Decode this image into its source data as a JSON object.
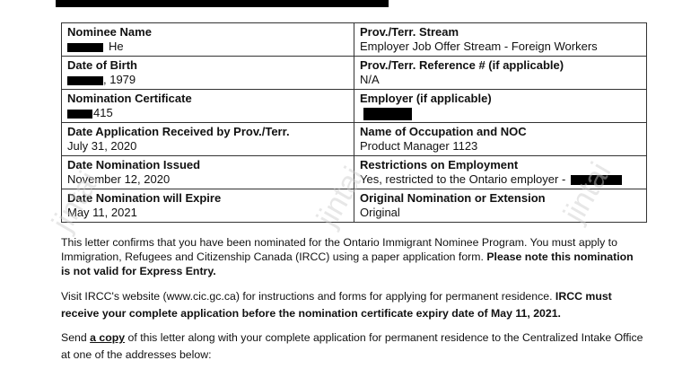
{
  "watermark": "jintai",
  "table": {
    "rows": [
      {
        "left": {
          "label": "Nominee Name",
          "value": "He",
          "redacted": true
        },
        "right": {
          "label": "Prov./Terr. Stream",
          "value": "Employer Job Offer Stream - Foreign Workers"
        }
      },
      {
        "left": {
          "label": "Date of Birth",
          "value": ", 1979",
          "redacted": true
        },
        "right": {
          "label": "Prov./Terr. Reference # (if applicable)",
          "value": "N/A"
        }
      },
      {
        "left": {
          "label": "Nomination Certificate",
          "value": "415",
          "redacted": true
        },
        "right": {
          "label": "Employer (if applicable)",
          "value": "",
          "redacted": true
        }
      },
      {
        "left": {
          "label": "Date Application Received by Prov./Terr.",
          "value": "July 31, 2020"
        },
        "right": {
          "label": "Name of Occupation and NOC",
          "value": "Product Manager 1123"
        }
      },
      {
        "left": {
          "label": "Date Nomination Issued",
          "value": "November 12, 2020"
        },
        "right": {
          "label": "Restrictions on Employment",
          "value": "Yes, restricted to the Ontario employer -",
          "redacted": true
        }
      },
      {
        "left": {
          "label": "Date Nomination will Expire",
          "value": "May 11, 2021"
        },
        "right": {
          "label": "Original Nomination or Extension",
          "value": "Original"
        }
      }
    ]
  },
  "paragraphs": {
    "p1": {
      "text": "This letter confirms that you have been nominated for the Ontario Immigrant Nominee Program. You must apply to Immigration, Refugees and Citizenship Canada (IRCC) using a paper application form. ",
      "bold": "Please note this nomination is not valid for Express Entry."
    },
    "p2": {
      "text": "Visit IRCC's website (www.cic.gc.ca) for instructions and forms for applying for permanent residence. ",
      "bold": "IRCC must receive your complete application before the nomination certificate expiry date of May 11, 2021."
    },
    "p3": {
      "pre": "Send ",
      "link": "a copy",
      "post": " of this letter along with your complete application for permanent residence to the Centralized Intake Office at one of the addresses below:"
    }
  }
}
